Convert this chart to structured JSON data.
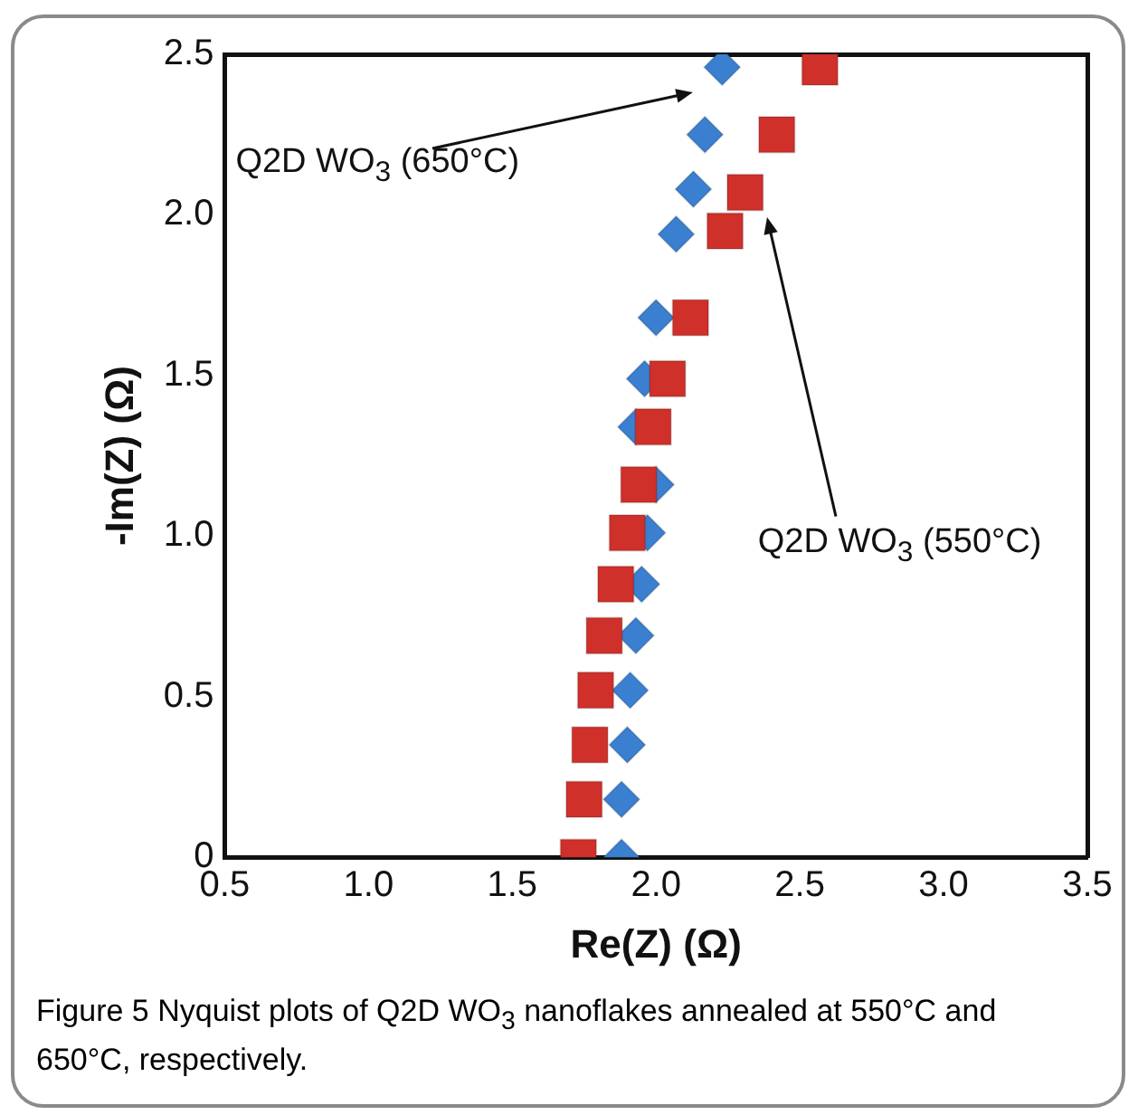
{
  "chart_data": {
    "type": "scatter",
    "xlabel": "Re(Z) (Ω)",
    "ylabel": "-Im(Z) (Ω)",
    "xlim": [
      0.5,
      3.5
    ],
    "xticks": [
      {
        "value": 0.5,
        "label": "0.5"
      },
      {
        "value": 1,
        "label": "1.0"
      },
      {
        "value": 1.5,
        "label": "1.5"
      },
      {
        "value": 2,
        "label": "2.0"
      },
      {
        "value": 2.5,
        "label": "2.5"
      },
      {
        "value": 3,
        "label": "3.0"
      },
      {
        "value": 3.5,
        "label": "3.5"
      }
    ],
    "ylim": [
      0,
      2.5
    ],
    "yticks": [
      0,
      {
        "value": 0.5,
        "label": "0.5"
      },
      {
        "value": 1,
        "label": "1.0"
      },
      {
        "value": 1.5,
        "label": "1.5"
      },
      {
        "value": 2,
        "label": "2.0"
      },
      {
        "value": 2.5,
        "label": "2.5"
      }
    ],
    "grid": false,
    "legend": false,
    "series": [
      {
        "color": "#3a7fd0",
        "marker": "diamond",
        "x": [
          1.88,
          1.88,
          1.9,
          1.91,
          1.93,
          1.95,
          1.97,
          2.0,
          1.93,
          1.96,
          2.0,
          2.07,
          2.13,
          2.17,
          2.23
        ],
        "values": [
          0,
          0.18,
          0.35,
          0.52,
          0.69,
          0.85,
          1.01,
          1.16,
          1.34,
          1.49,
          1.68,
          1.94,
          2.08,
          2.25,
          2.46
        ]
      },
      {
        "color": "#d0302a",
        "marker": "square",
        "x": [
          1.73,
          1.75,
          1.77,
          1.79,
          1.82,
          1.86,
          1.9,
          1.94,
          1.99,
          2.04,
          2.12,
          2.24,
          2.31,
          2.42,
          2.57
        ],
        "values": [
          0,
          0.18,
          0.35,
          0.52,
          0.69,
          0.85,
          1.01,
          1.16,
          1.34,
          1.49,
          1.68,
          1.95,
          2.07,
          2.25,
          2.46
        ]
      }
    ],
    "annotations": [
      "Q2D WO$_{3}$ (650°C)",
      "Q2D WO$_{3}$ (550°C)",
      "Figure 5 Nyquist plots of Q2D WO$_{3}$ nanoflakes annealed at 550°C and 650°C, respectively."
    ]
  }
}
